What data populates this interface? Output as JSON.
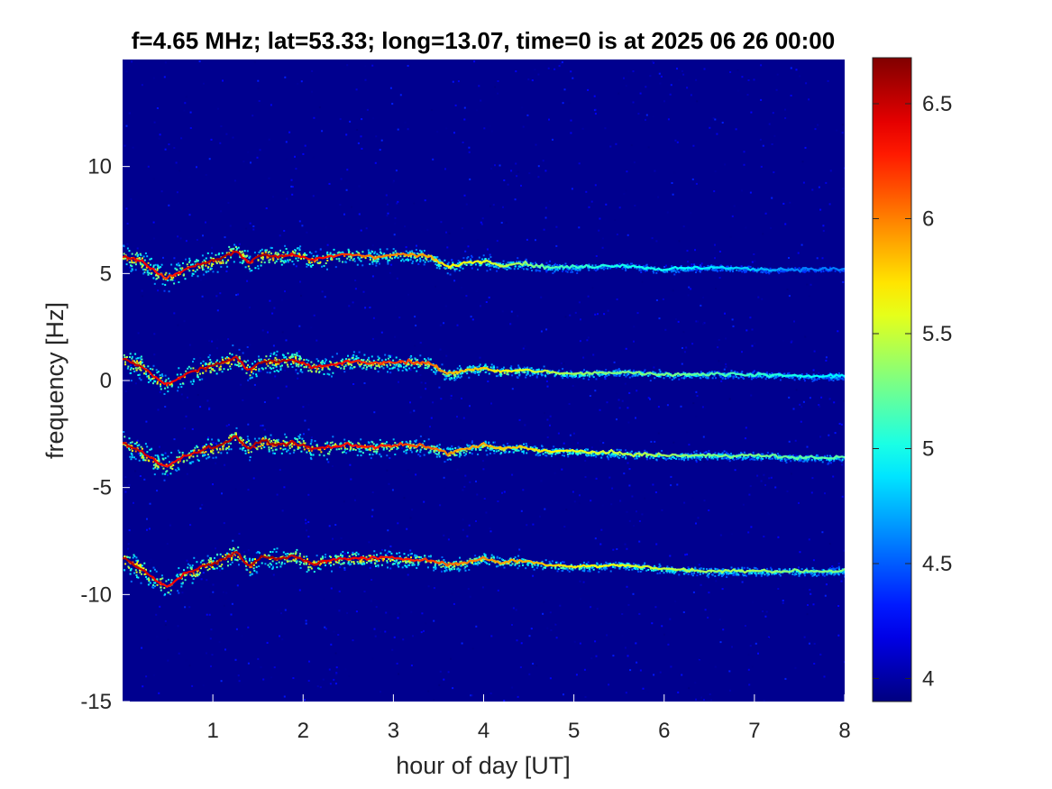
{
  "chart_data": {
    "type": "heatmap",
    "title": "f=4.65 MHz;  lat=53.33; long=13.07, time=0 is at 2025 06 26 00:00",
    "xlabel": "hour of day [UT]",
    "ylabel": "frequency [Hz]",
    "xlim": [
      0,
      8
    ],
    "ylim": [
      -15,
      15
    ],
    "xticks": [
      1,
      2,
      3,
      4,
      5,
      6,
      7,
      8
    ],
    "yticks": [
      -15,
      -10,
      -5,
      0,
      5,
      10
    ],
    "colormap": "jet",
    "background_color": "#00008f",
    "colorbar": {
      "position": "right",
      "clim": [
        3.9,
        6.7
      ],
      "ticks": [
        4,
        4.5,
        5,
        5.5,
        6,
        6.5
      ]
    },
    "series": [
      {
        "x": [
          0,
          0.2,
          0.4,
          0.5,
          0.7,
          0.9,
          1.1,
          1.25,
          1.4,
          1.55,
          1.7,
          1.9,
          2.1,
          2.3,
          2.5,
          2.8,
          3.1,
          3.4,
          3.6,
          3.8,
          4.0,
          4.2,
          4.4,
          4.7,
          5.0,
          5.5,
          6.0,
          6.5,
          7.0,
          7.5,
          8.0
        ],
        "y": [
          5.8,
          5.6,
          5.0,
          4.8,
          5.2,
          5.5,
          5.7,
          6.1,
          5.5,
          5.9,
          5.8,
          5.9,
          5.6,
          5.8,
          5.9,
          5.8,
          5.9,
          5.8,
          5.3,
          5.5,
          5.6,
          5.4,
          5.5,
          5.3,
          5.3,
          5.4,
          5.2,
          5.3,
          5.2,
          5.2,
          5.2
        ],
        "intensity": [
          6.5,
          6.4,
          6.3,
          6.2,
          6.4,
          6.5,
          6.6,
          6.5,
          6.4,
          6.6,
          6.5,
          6.4,
          6.4,
          6.3,
          6.2,
          6.0,
          6.0,
          5.9,
          5.7,
          5.6,
          5.6,
          5.5,
          5.4,
          5.2,
          5.1,
          5.0,
          5.0,
          4.9,
          4.8,
          4.6,
          4.6
        ]
      },
      {
        "x": [
          0,
          0.2,
          0.4,
          0.5,
          0.7,
          0.9,
          1.1,
          1.25,
          1.4,
          1.55,
          1.7,
          1.9,
          2.1,
          2.3,
          2.5,
          2.8,
          3.1,
          3.4,
          3.6,
          3.8,
          4.0,
          4.2,
          4.4,
          4.7,
          5.0,
          5.5,
          6.0,
          6.5,
          7.0,
          7.5,
          8.0
        ],
        "y": [
          1.0,
          0.7,
          0.0,
          -0.2,
          0.3,
          0.6,
          0.8,
          1.1,
          0.5,
          0.9,
          0.9,
          1.0,
          0.6,
          0.7,
          0.9,
          0.8,
          0.9,
          0.8,
          0.3,
          0.5,
          0.6,
          0.4,
          0.5,
          0.4,
          0.3,
          0.4,
          0.3,
          0.3,
          0.3,
          0.2,
          0.2
        ],
        "intensity": [
          6.5,
          6.5,
          6.4,
          6.3,
          6.4,
          6.5,
          6.6,
          6.5,
          6.4,
          6.6,
          6.6,
          6.5,
          6.4,
          6.4,
          6.3,
          6.2,
          6.2,
          6.1,
          5.9,
          5.8,
          5.8,
          5.7,
          5.6,
          5.5,
          5.4,
          5.3,
          5.3,
          5.2,
          5.1,
          5.0,
          4.9
        ]
      },
      {
        "x": [
          0,
          0.2,
          0.4,
          0.5,
          0.7,
          0.9,
          1.1,
          1.25,
          1.4,
          1.55,
          1.7,
          1.9,
          2.1,
          2.3,
          2.5,
          2.8,
          3.1,
          3.4,
          3.6,
          3.8,
          4.0,
          4.2,
          4.4,
          4.7,
          5.0,
          5.5,
          6.0,
          6.5,
          7.0,
          7.5,
          8.0
        ],
        "y": [
          -2.9,
          -3.3,
          -3.9,
          -4.0,
          -3.5,
          -3.2,
          -3.0,
          -2.6,
          -3.2,
          -2.8,
          -3.0,
          -2.9,
          -3.2,
          -3.1,
          -3.0,
          -3.1,
          -3.0,
          -3.1,
          -3.4,
          -3.2,
          -3.0,
          -3.2,
          -3.1,
          -3.3,
          -3.3,
          -3.4,
          -3.5,
          -3.5,
          -3.5,
          -3.6,
          -3.6
        ],
        "intensity": [
          6.5,
          6.5,
          6.4,
          6.3,
          6.4,
          6.5,
          6.6,
          6.5,
          6.5,
          6.6,
          6.6,
          6.5,
          6.5,
          6.4,
          6.3,
          6.3,
          6.2,
          6.1,
          6.0,
          5.9,
          5.9,
          5.8,
          5.8,
          5.7,
          5.6,
          5.5,
          5.4,
          5.3,
          5.3,
          5.2,
          5.2
        ]
      },
      {
        "x": [
          0,
          0.2,
          0.4,
          0.5,
          0.7,
          0.9,
          1.1,
          1.25,
          1.4,
          1.55,
          1.7,
          1.9,
          2.1,
          2.3,
          2.5,
          2.8,
          3.1,
          3.4,
          3.6,
          3.8,
          4.0,
          4.2,
          4.4,
          4.7,
          5.0,
          5.5,
          6.0,
          6.5,
          7.0,
          7.5,
          8.0
        ],
        "y": [
          -8.3,
          -8.8,
          -9.4,
          -9.6,
          -9.0,
          -8.7,
          -8.4,
          -8.0,
          -8.7,
          -8.2,
          -8.3,
          -8.2,
          -8.6,
          -8.4,
          -8.3,
          -8.3,
          -8.3,
          -8.4,
          -8.6,
          -8.5,
          -8.3,
          -8.5,
          -8.4,
          -8.6,
          -8.7,
          -8.6,
          -8.8,
          -8.9,
          -8.9,
          -8.9,
          -8.9
        ],
        "intensity": [
          6.6,
          6.5,
          6.4,
          6.3,
          6.4,
          6.5,
          6.6,
          6.5,
          6.5,
          6.6,
          6.6,
          6.5,
          6.5,
          6.4,
          6.4,
          6.3,
          6.3,
          6.2,
          6.1,
          6.0,
          6.0,
          5.9,
          5.9,
          5.8,
          5.7,
          5.6,
          5.5,
          5.4,
          5.4,
          5.3,
          5.3
        ]
      }
    ]
  }
}
